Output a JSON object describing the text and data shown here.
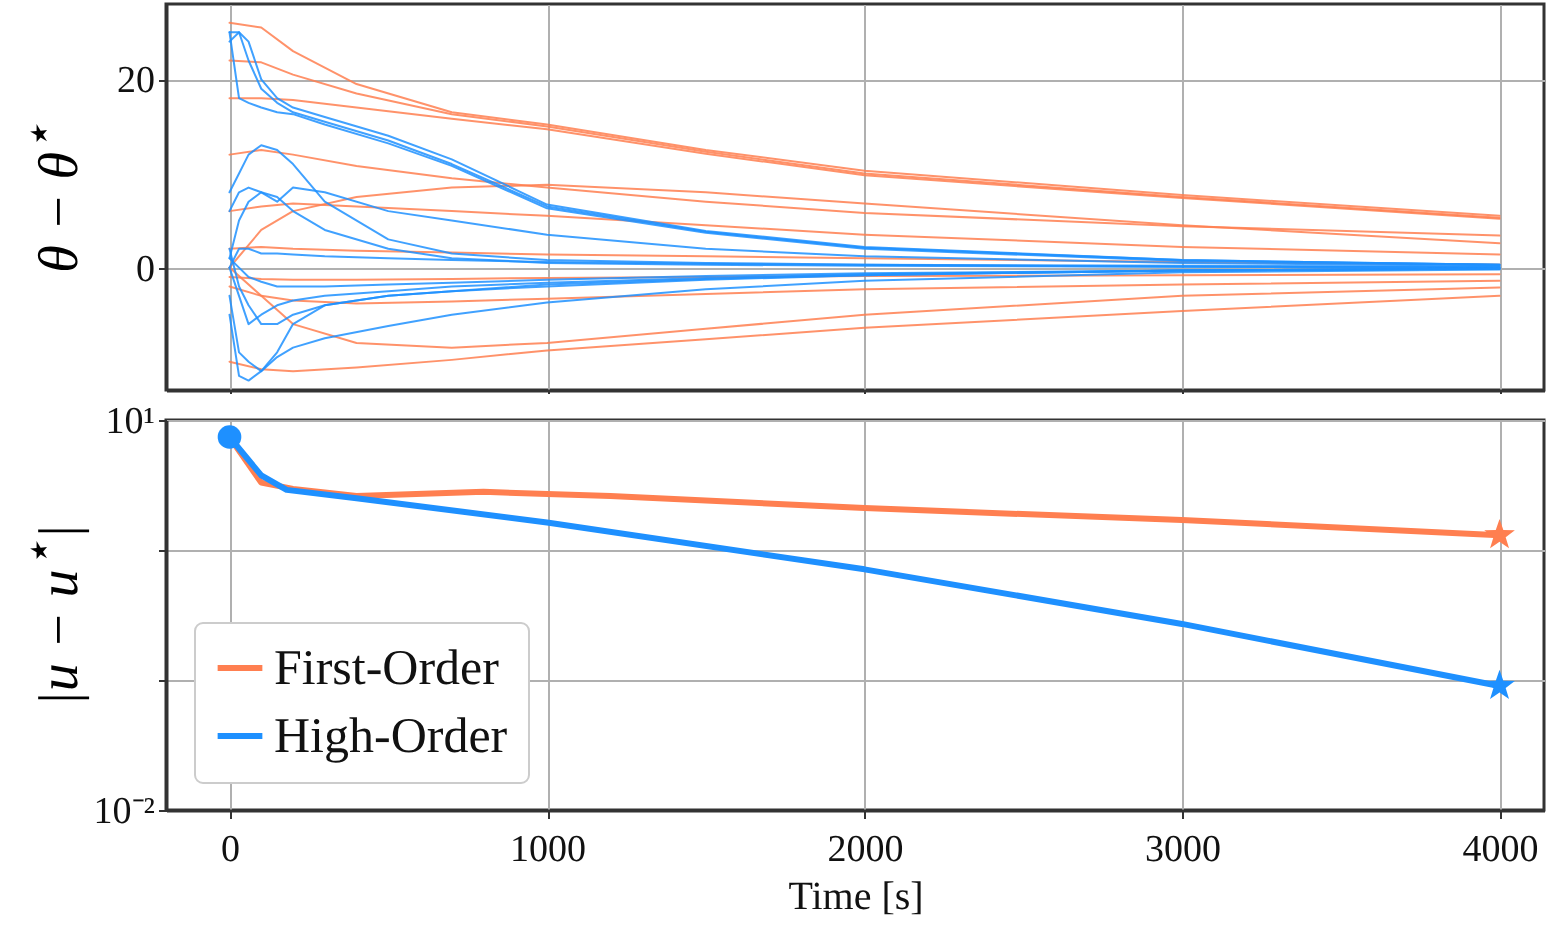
{
  "chart_data": [
    {
      "type": "line",
      "ylabel": "θ − θ$^{⋆}$",
      "xlim": [
        -200,
        4140
      ],
      "xticks": [
        0,
        1000,
        2000,
        3000,
        4000
      ],
      "ylim": [
        -13,
        28
      ],
      "yticks": [
        0,
        20
      ],
      "grid": true,
      "tick_labels": "y",
      "x": [
        0,
        100,
        200,
        400,
        700,
        1000,
        1500,
        2000,
        3000,
        4000
      ],
      "series": [
        {
          "color": "#ff7f50",
          "values": [
            26,
            25.5,
            23,
            19.5,
            16.5,
            15.2,
            12.5,
            10.3,
            7.7,
            5.5
          ]
        },
        {
          "color": "#ff7f50",
          "values": [
            22,
            21.8,
            20.5,
            18.5,
            16.3,
            15,
            12.3,
            10,
            7.5,
            5.3
          ]
        },
        {
          "color": "#ff7f50",
          "values": [
            18,
            18,
            17.8,
            17,
            15.8,
            14.7,
            12.1,
            9.8,
            7.4,
            5.2
          ]
        },
        {
          "color": "#ff7f50",
          "values": [
            12,
            12.5,
            12,
            10.8,
            9.5,
            8.5,
            7,
            5.8,
            4.4,
            3.4
          ]
        },
        {
          "color": "#ff7f50",
          "values": [
            0,
            4,
            6,
            7.5,
            8.5,
            8.8,
            8,
            6.8,
            4.5,
            2.6
          ]
        },
        {
          "color": "#ff7f50",
          "values": [
            6,
            6.5,
            6.8,
            6.5,
            6,
            5.5,
            4.5,
            3.5,
            2.2,
            1.4
          ]
        },
        {
          "color": "#ff7f50",
          "values": [
            2,
            2.2,
            2,
            1.8,
            1.6,
            1.4,
            1.2,
            1,
            0.6,
            0.3
          ]
        },
        {
          "color": "#ff7f50",
          "values": [
            -1,
            -1.2,
            -1.3,
            -1.3,
            -1.2,
            -1.1,
            -1,
            -0.9,
            -0.8,
            -0.7
          ]
        },
        {
          "color": "#ff7f50",
          "values": [
            -2,
            -3,
            -3.5,
            -3.8,
            -3.6,
            -3.3,
            -2.8,
            -2.3,
            -1.8,
            -1.4
          ]
        },
        {
          "color": "#ff7f50",
          "values": [
            0,
            -3,
            -6,
            -8,
            -8.5,
            -8,
            -6.5,
            -5,
            -3,
            -2.1
          ]
        },
        {
          "color": "#ff7f50",
          "values": [
            -10,
            -10.8,
            -11,
            -10.6,
            -9.8,
            -8.8,
            -7.6,
            -6.4,
            -4.6,
            -3
          ]
        },
        {
          "color": "#1e90ff",
          "x": [
            0,
            30,
            60,
            100,
            150,
            200,
            300,
            500,
            700,
            1000,
            1500,
            2000,
            3000,
            4000
          ],
          "values": [
            25,
            25,
            24,
            20,
            18,
            17,
            16,
            14,
            11.5,
            6.7,
            3.9,
            2.2,
            0.8,
            0.3
          ]
        },
        {
          "color": "#1e90ff",
          "x": [
            0,
            30,
            60,
            100,
            150,
            200,
            300,
            500,
            700,
            1000,
            1500,
            2000,
            3000,
            4000
          ],
          "values": [
            24,
            25,
            22,
            19,
            17.5,
            16.5,
            15.5,
            13.5,
            11,
            6.5,
            3.8,
            2.1,
            0.8,
            0.3
          ]
        },
        {
          "color": "#1e90ff",
          "x": [
            0,
            30,
            60,
            100,
            150,
            200,
            300,
            500,
            700,
            1000,
            1500,
            2000,
            3000,
            4000
          ],
          "values": [
            25,
            18,
            17.5,
            17,
            16.5,
            16.3,
            15.2,
            13.2,
            10.8,
            6.3,
            3.7,
            2,
            0.7,
            0.3
          ]
        },
        {
          "color": "#1e90ff",
          "x": [
            0,
            30,
            60,
            100,
            150,
            200,
            300,
            500,
            700,
            1000,
            1500,
            2000,
            3000,
            4000
          ],
          "values": [
            8,
            10,
            12,
            13,
            12.5,
            11,
            7,
            3,
            1.5,
            0.8,
            0.5,
            0.3,
            0.2,
            0.1
          ]
        },
        {
          "color": "#1e90ff",
          "x": [
            0,
            30,
            60,
            100,
            150,
            200,
            300,
            500,
            700,
            1000,
            1500,
            2000,
            3000,
            4000
          ],
          "values": [
            6,
            8,
            8.5,
            8,
            7,
            8.5,
            8,
            6,
            5,
            3.5,
            2,
            1.2,
            0.5,
            0.2
          ]
        },
        {
          "color": "#1e90ff",
          "x": [
            0,
            30,
            60,
            100,
            150,
            200,
            300,
            500,
            700,
            1000,
            1500,
            2000,
            3000,
            4000
          ],
          "values": [
            1,
            5,
            7,
            8,
            7.5,
            6,
            4,
            2,
            1,
            0.5,
            0.3,
            0.2,
            0.1,
            0
          ]
        },
        {
          "color": "#1e90ff",
          "x": [
            0,
            30,
            60,
            100,
            150,
            200,
            300,
            500,
            700,
            1000,
            1500,
            2000,
            3000,
            4000
          ],
          "values": [
            0,
            2,
            2,
            1.5,
            1.5,
            1.4,
            1.2,
            1,
            0.8,
            0.6,
            0.4,
            0.3,
            0.1,
            0
          ]
        },
        {
          "color": "#1e90ff",
          "x": [
            0,
            30,
            60,
            100,
            150,
            200,
            300,
            500,
            700,
            1000,
            1500,
            2000,
            3000,
            4000
          ],
          "values": [
            1,
            0,
            -1,
            -1.5,
            -2,
            -2,
            -2,
            -1.8,
            -1.6,
            -1.3,
            -0.9,
            -0.6,
            -0.3,
            -0.1
          ]
        },
        {
          "color": "#1e90ff",
          "x": [
            0,
            30,
            60,
            100,
            150,
            200,
            300,
            500,
            700,
            1000,
            1500,
            2000,
            3000,
            4000
          ],
          "values": [
            0,
            -3,
            -6,
            -5,
            -4,
            -3.5,
            -3,
            -2.5,
            -2,
            -1.6,
            -1.1,
            -0.7,
            -0.3,
            -0.1
          ]
        },
        {
          "color": "#1e90ff",
          "x": [
            0,
            30,
            60,
            100,
            150,
            200,
            300,
            500,
            700,
            1000,
            1500,
            2000,
            3000,
            4000
          ],
          "values": [
            -5,
            -11.5,
            -12,
            -11,
            -9.5,
            -8.5,
            -7.5,
            -6.2,
            -5,
            -3.7,
            -2.3,
            -1.4,
            -0.5,
            -0.2
          ]
        },
        {
          "color": "#1e90ff",
          "x": [
            0,
            30,
            60,
            100,
            150,
            200,
            300,
            500,
            700,
            1000,
            1500,
            2000,
            3000,
            4000
          ],
          "values": [
            -3,
            -9,
            -10,
            -11,
            -9,
            -6,
            -4,
            -3,
            -2.5,
            -2,
            -1.3,
            -0.8,
            -0.3,
            -0.1
          ]
        },
        {
          "color": "#1e90ff",
          "x": [
            0,
            30,
            60,
            100,
            150,
            200,
            300,
            500,
            700,
            1000,
            1500,
            2000,
            3000,
            4000
          ],
          "values": [
            2,
            -2,
            -4,
            -6,
            -6,
            -5,
            -4,
            -3,
            -2.5,
            -1.8,
            -1.2,
            -0.8,
            -0.3,
            -0.1
          ]
        }
      ]
    },
    {
      "type": "line",
      "ylabel": "|u − u$^{⋆}$|",
      "xlabel": "Time [s]",
      "xlim": [
        -200,
        4140
      ],
      "xticks": [
        0,
        1000,
        2000,
        3000,
        4000
      ],
      "ylim": [
        0.01,
        10
      ],
      "yticks": [
        {
          "value": 10,
          "label": "10¹"
        },
        {
          "value": 1,
          "label": null
        },
        {
          "value": 0.1,
          "label": null
        },
        {
          "value": 0.01,
          "label": "10⁻²"
        }
      ],
      "log": "y",
      "grid": true,
      "legend": "bottom left",
      "series": [
        {
          "name": "First-Order",
          "color": "#ff7f50",
          "x": [
            0,
            100,
            200,
            400,
            800,
            1200,
            2000,
            3000,
            4000
          ],
          "values": [
            7.4,
            3.3,
            2.95,
            2.6,
            2.8,
            2.6,
            2.1,
            1.7,
            1.3
          ]
        },
        {
          "name": "High-Order",
          "color": "#1e90ff",
          "x": [
            0,
            100,
            180,
            400,
            1000,
            2000,
            3000,
            4000
          ],
          "values": [
            7.4,
            3.75,
            2.9,
            2.5,
            1.63,
            0.71,
            0.27,
            0.09
          ]
        },
        {
          "type": "scatter",
          "marker": "circle",
          "color": "#1e90ff",
          "x": [
            0
          ],
          "values": [
            7.4
          ]
        },
        {
          "type": "scatter",
          "marker": "star",
          "color": "#ff7f50",
          "x": [
            4000
          ],
          "values": [
            1.3
          ]
        },
        {
          "type": "scatter",
          "marker": "star",
          "color": "#1e90ff",
          "x": [
            4000
          ],
          "values": [
            0.09
          ]
        }
      ]
    }
  ]
}
